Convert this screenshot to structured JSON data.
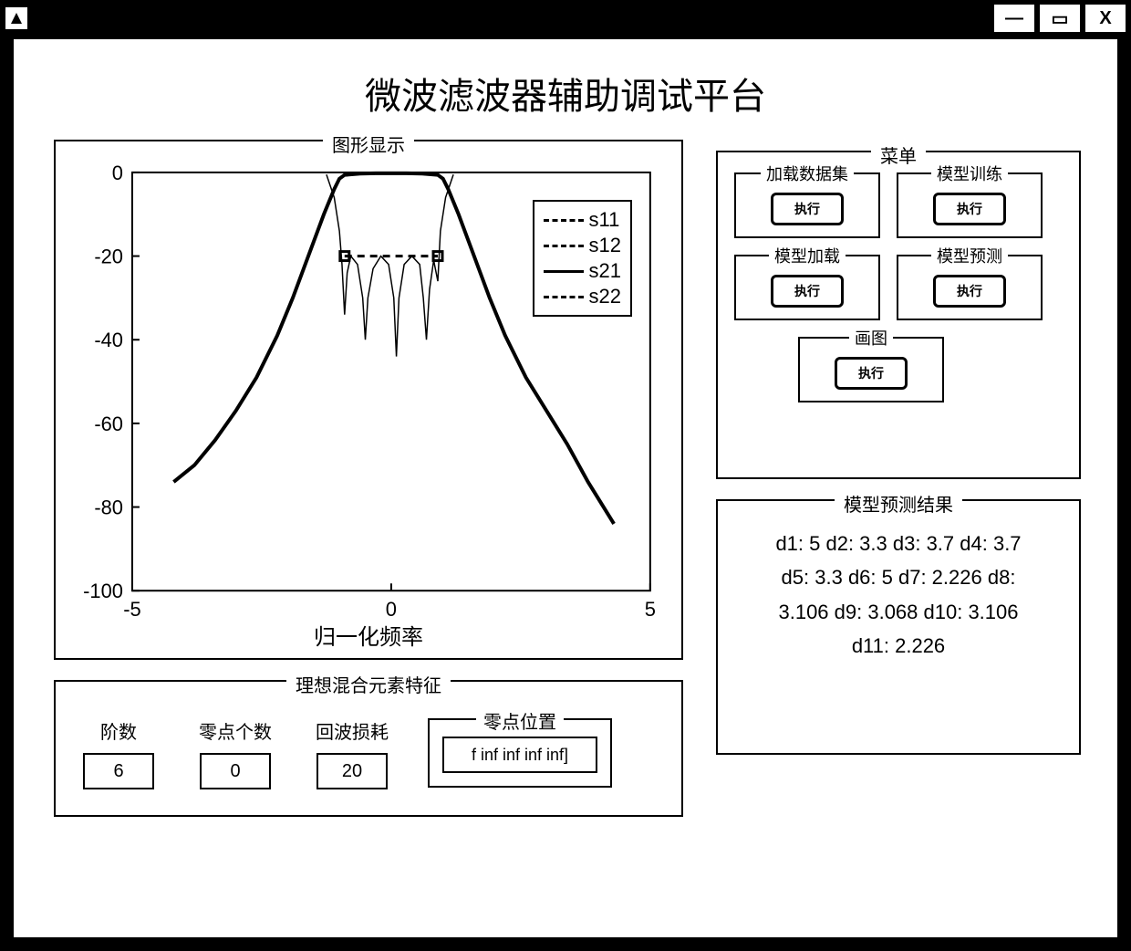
{
  "window": {
    "minimize_glyph": "—",
    "maximize_glyph": "▭",
    "close_glyph": "X"
  },
  "title": "微波滤波器辅助调试平台",
  "chart": {
    "panel_title": "图形显示",
    "type": "line",
    "xlabel": "归一化频率",
    "xlim": [
      -5,
      5
    ],
    "ylim": [
      -100,
      0
    ],
    "xticks": [
      -5,
      0,
      5
    ],
    "yticks": [
      -100,
      -80,
      -60,
      -40,
      -20,
      0
    ],
    "axis_color": "#000000",
    "axis_fontsize": 22,
    "line_width_main": 4,
    "line_width_thin": 1.5,
    "legend": {
      "border_color": "#000000",
      "items": [
        {
          "label": "s11",
          "dash": "8,6"
        },
        {
          "label": "s12",
          "dash": "10,4,3,4"
        },
        {
          "label": "s21",
          "dash": ""
        },
        {
          "label": "s22",
          "dash": "6,4,2,4"
        }
      ]
    },
    "series": {
      "s12_s21": {
        "width": 4,
        "dash": "",
        "points": [
          [
            -4.2,
            -74
          ],
          [
            -3.8,
            -70
          ],
          [
            -3.4,
            -64
          ],
          [
            -3.0,
            -57
          ],
          [
            -2.6,
            -49
          ],
          [
            -2.2,
            -39
          ],
          [
            -1.9,
            -30
          ],
          [
            -1.6,
            -20
          ],
          [
            -1.3,
            -10
          ],
          [
            -1.1,
            -4
          ],
          [
            -1.0,
            -1.5
          ],
          [
            -0.9,
            -0.6
          ],
          [
            -0.6,
            -0.3
          ],
          [
            -0.3,
            -0.2
          ],
          [
            0,
            -0.2
          ],
          [
            0.3,
            -0.2
          ],
          [
            0.6,
            -0.3
          ],
          [
            0.9,
            -0.6
          ],
          [
            1.0,
            -1.5
          ],
          [
            1.1,
            -4
          ],
          [
            1.3,
            -10
          ],
          [
            1.6,
            -20
          ],
          [
            1.9,
            -30
          ],
          [
            2.2,
            -39
          ],
          [
            2.6,
            -49
          ],
          [
            3.0,
            -57
          ],
          [
            3.4,
            -65
          ],
          [
            3.8,
            -74
          ],
          [
            4.3,
            -84
          ]
        ]
      },
      "s11_s22": {
        "width": 1.5,
        "dash": "",
        "points": [
          [
            -1.25,
            -0.5
          ],
          [
            -1.1,
            -6
          ],
          [
            -1.0,
            -14
          ],
          [
            -0.95,
            -22
          ],
          [
            -0.9,
            -34
          ],
          [
            -0.85,
            -24
          ],
          [
            -0.78,
            -20
          ],
          [
            -0.65,
            -22
          ],
          [
            -0.55,
            -30
          ],
          [
            -0.5,
            -40
          ],
          [
            -0.45,
            -30
          ],
          [
            -0.35,
            -23
          ],
          [
            -0.2,
            -20
          ],
          [
            -0.05,
            -22
          ],
          [
            0.05,
            -30
          ],
          [
            0.1,
            -44
          ],
          [
            0.15,
            -30
          ],
          [
            0.25,
            -22
          ],
          [
            0.4,
            -20
          ],
          [
            0.55,
            -22
          ],
          [
            0.62,
            -30
          ],
          [
            0.68,
            -40
          ],
          [
            0.74,
            -28
          ],
          [
            0.82,
            -21
          ],
          [
            0.9,
            -26
          ],
          [
            0.95,
            -14
          ],
          [
            1.05,
            -6
          ],
          [
            1.2,
            -0.5
          ]
        ]
      },
      "dashed_marker": {
        "width": 3,
        "dash": "8,6",
        "points": [
          [
            -0.9,
            -20
          ],
          [
            0.9,
            -20
          ]
        ]
      }
    },
    "markers": [
      {
        "x": -0.9,
        "y": -20,
        "size": 10
      },
      {
        "x": 0.9,
        "y": -20,
        "size": 10
      }
    ]
  },
  "ideal": {
    "panel_title": "理想混合元素特征",
    "order_label": "阶数",
    "order_value": "6",
    "zeros_label": "零点个数",
    "zeros_value": "0",
    "return_loss_label": "回波损耗",
    "return_loss_value": "20",
    "zero_pos_label": "零点位置",
    "zero_pos_value": "f inf inf inf inf]"
  },
  "menu": {
    "panel_title": "菜单",
    "btn_label": "执行",
    "items": [
      {
        "title": "加载数据集"
      },
      {
        "title": "模型训练"
      },
      {
        "title": "模型加载"
      },
      {
        "title": "模型预测"
      },
      {
        "title": "画图"
      }
    ]
  },
  "results": {
    "panel_title": "模型预测结果",
    "lines": [
      "d1: 5  d2: 3.3  d3: 3.7  d4: 3.7",
      "d5: 3.3  d6: 5  d7: 2.226  d8:",
      "3.106  d9: 3.068  d10: 3.106",
      "d11: 2.226"
    ]
  }
}
